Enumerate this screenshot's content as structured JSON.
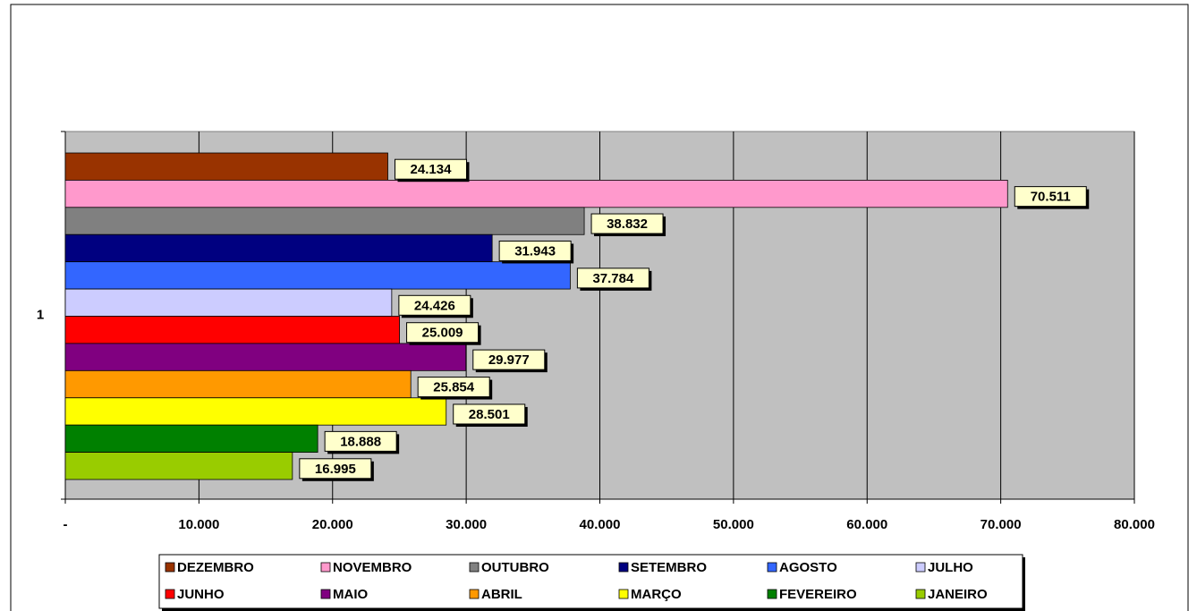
{
  "chart_data": {
    "type": "bar",
    "orientation": "horizontal",
    "categories": [
      "1"
    ],
    "series": [
      {
        "name": "DEZEMBRO",
        "color": "#993300",
        "values": [
          24134
        ],
        "value_labels": [
          "24.134"
        ]
      },
      {
        "name": "NOVEMBRO",
        "color": "#ff99cc",
        "values": [
          70511
        ],
        "value_labels": [
          "70.511"
        ]
      },
      {
        "name": "OUTUBRO",
        "color": "#808080",
        "values": [
          38832
        ],
        "value_labels": [
          "38.832"
        ]
      },
      {
        "name": "SETEMBRO",
        "color": "#000080",
        "values": [
          31943
        ],
        "value_labels": [
          "31.943"
        ]
      },
      {
        "name": "AGOSTO",
        "color": "#3366ff",
        "values": [
          37784
        ],
        "value_labels": [
          "37.784"
        ]
      },
      {
        "name": "JULHO",
        "color": "#ccccff",
        "values": [
          24426
        ],
        "value_labels": [
          "24.426"
        ]
      },
      {
        "name": "JUNHO",
        "color": "#ff0000",
        "values": [
          25009
        ],
        "value_labels": [
          "25.009"
        ]
      },
      {
        "name": "MAIO",
        "color": "#800080",
        "values": [
          29977
        ],
        "value_labels": [
          "29.977"
        ]
      },
      {
        "name": "ABRIL",
        "color": "#ff9900",
        "values": [
          25854
        ],
        "value_labels": [
          "25.854"
        ]
      },
      {
        "name": "MARÇO",
        "color": "#ffff00",
        "values": [
          28501
        ],
        "value_labels": [
          "28.501"
        ]
      },
      {
        "name": "FEVEREIRO",
        "color": "#008000",
        "values": [
          18888
        ],
        "value_labels": [
          "18.888"
        ]
      },
      {
        "name": "JANEIRO",
        "color": "#99cc00",
        "values": [
          16995
        ],
        "value_labels": [
          "16.995"
        ]
      }
    ],
    "xlim": [
      0,
      80000
    ],
    "xticks": [
      {
        "value": 0,
        "label": "-"
      },
      {
        "value": 10000,
        "label": "10.000"
      },
      {
        "value": 20000,
        "label": "20.000"
      },
      {
        "value": 30000,
        "label": "30.000"
      },
      {
        "value": 40000,
        "label": "40.000"
      },
      {
        "value": 50000,
        "label": "50.000"
      },
      {
        "value": 60000,
        "label": "60.000"
      },
      {
        "value": 70000,
        "label": "70.000"
      },
      {
        "value": 80000,
        "label": "80.000"
      }
    ],
    "grid": true,
    "legend": "bottom"
  }
}
